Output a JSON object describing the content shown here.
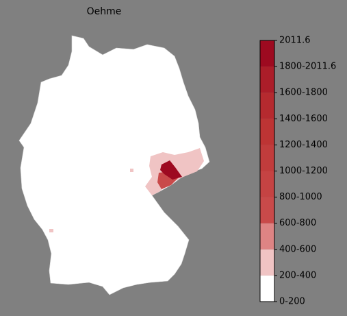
{
  "title": "Oehme",
  "colorbar": {
    "labels": [
      "0-200",
      "200-400",
      "400-600",
      "600-800",
      "800-1000",
      "1000-1200",
      "1200-1400",
      "1400-1600",
      "1600-1800",
      "1800-2011.6",
      "2011.6"
    ],
    "colors": [
      "#ffffff",
      "#f0c4c4",
      "#de8484",
      "#c94a4a",
      "#c54343",
      "#c13c3c",
      "#bd3434",
      "#b52a2f",
      "#ab1d29",
      "#9d0a20"
    ]
  }
}
